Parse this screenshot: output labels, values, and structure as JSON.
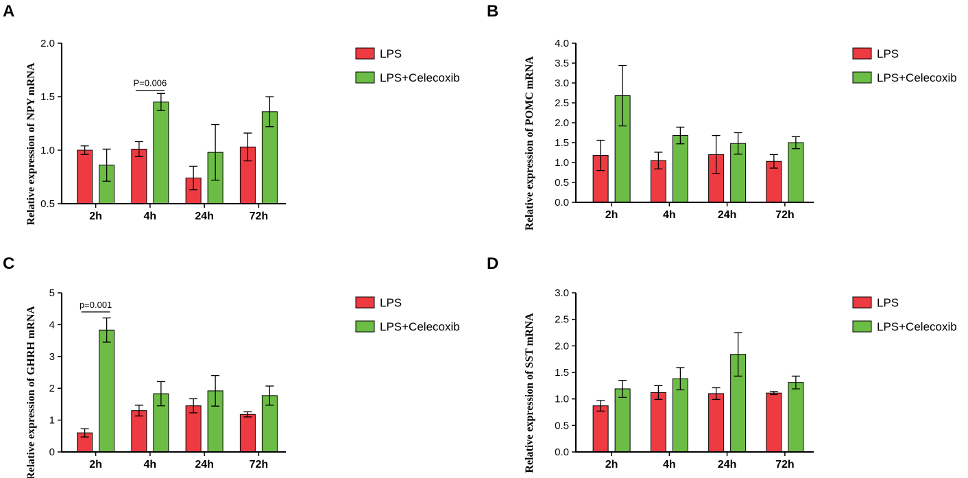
{
  "colors": {
    "lps": "#ee3b42",
    "lps_celecoxib": "#6cbd45",
    "stroke": "#000000"
  },
  "chart_data": [
    {
      "panel": "A",
      "type": "bar",
      "ylabel": "Relative expression of  NPY  mRNA",
      "categories": [
        "2h",
        "4h",
        "24h",
        "72h"
      ],
      "ylim": [
        0.5,
        2.0
      ],
      "yticks": [
        0.5,
        1.0,
        1.5,
        2.0
      ],
      "tick_decimals": 1,
      "legend": [
        "LPS",
        "LPS+Celecoxib"
      ],
      "series": [
        {
          "name": "LPS",
          "values": [
            1.0,
            1.01,
            0.74,
            1.03
          ],
          "errors": [
            0.04,
            0.07,
            0.11,
            0.13
          ]
        },
        {
          "name": "LPS+Celecoxib",
          "values": [
            0.86,
            1.45,
            0.98,
            1.36
          ],
          "errors": [
            0.15,
            0.08,
            0.26,
            0.14
          ]
        }
      ],
      "annotations": [
        {
          "text": "P=0.006",
          "category": 1,
          "value": 1.56
        }
      ]
    },
    {
      "panel": "B",
      "type": "bar",
      "ylabel": "Relative expression of  POMC  mRNA",
      "categories": [
        "2h",
        "4h",
        "24h",
        "72h"
      ],
      "ylim": [
        0.0,
        4.0
      ],
      "yticks": [
        0.0,
        0.5,
        1.0,
        1.5,
        2.0,
        2.5,
        3.0,
        3.5,
        4.0
      ],
      "tick_decimals": 1,
      "legend": [
        "LPS",
        "LPS+Celecoxib"
      ],
      "series": [
        {
          "name": "LPS",
          "values": [
            1.18,
            1.05,
            1.2,
            1.03
          ],
          "errors": [
            0.38,
            0.21,
            0.48,
            0.17
          ]
        },
        {
          "name": "LPS+Celecoxib",
          "values": [
            2.68,
            1.68,
            1.48,
            1.5
          ],
          "errors": [
            0.76,
            0.21,
            0.27,
            0.15
          ]
        }
      ],
      "annotations": []
    },
    {
      "panel": "C",
      "type": "bar",
      "ylabel": "Relative expression of GHRH  mRNA",
      "categories": [
        "2h",
        "4h",
        "24h",
        "72h"
      ],
      "ylim": [
        0,
        5
      ],
      "yticks": [
        0,
        1,
        2,
        3,
        4,
        5
      ],
      "tick_decimals": 0,
      "legend": [
        "LPS",
        "LPS+Celecoxib"
      ],
      "series": [
        {
          "name": "LPS",
          "values": [
            0.6,
            1.3,
            1.45,
            1.18
          ],
          "errors": [
            0.13,
            0.17,
            0.22,
            0.08
          ]
        },
        {
          "name": "LPS+Celecoxib",
          "values": [
            3.83,
            1.83,
            1.92,
            1.77
          ],
          "errors": [
            0.38,
            0.38,
            0.48,
            0.3
          ]
        }
      ],
      "annotations": [
        {
          "text": "p=0.001",
          "category": 0,
          "value": 4.4
        }
      ]
    },
    {
      "panel": "D",
      "type": "bar",
      "ylabel": "Relative expression of SST  mRNA",
      "categories": [
        "2h",
        "4h",
        "24h",
        "72h"
      ],
      "ylim": [
        0.0,
        3.0
      ],
      "yticks": [
        0.0,
        0.5,
        1.0,
        1.5,
        2.0,
        2.5,
        3.0
      ],
      "tick_decimals": 1,
      "legend": [
        "LPS",
        "LPS+Celecoxib"
      ],
      "series": [
        {
          "name": "LPS",
          "values": [
            0.87,
            1.12,
            1.1,
            1.11
          ],
          "errors": [
            0.1,
            0.13,
            0.11,
            0.03
          ]
        },
        {
          "name": "LPS+Celecoxib",
          "values": [
            1.19,
            1.38,
            1.84,
            1.31
          ],
          "errors": [
            0.16,
            0.21,
            0.41,
            0.12
          ]
        }
      ],
      "annotations": []
    }
  ]
}
